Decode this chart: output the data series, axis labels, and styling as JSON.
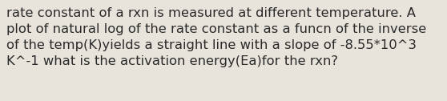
{
  "text": "rate constant of a rxn is measured at different temperature. A\nplot of natural log of the rate constant as a funcn of the inverse\nof the temp(K)yields a straight line with a slope of -8.55*10^3\nK^-1 what is the activation energy(Ea)for the rxn?",
  "background_color": "#e8e4dc",
  "text_color": "#2a2a2a",
  "font_size": 11.8,
  "fig_width": 5.58,
  "fig_height": 1.26,
  "dpi": 100
}
